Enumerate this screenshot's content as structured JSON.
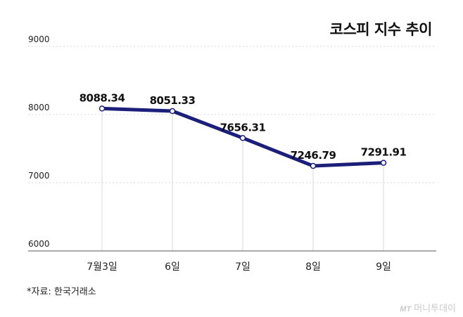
{
  "title": "코스피 지수 추이",
  "source": "*자료: 한국거래소",
  "brand": {
    "mark": "MT",
    "name": "머니투데이"
  },
  "colors": {
    "line": "#1c1f7a",
    "grid": "#d9d9d9",
    "marker_fill": "#ffffff"
  },
  "chart_data": {
    "type": "line",
    "title": "코스피 지수 추이",
    "xlabel": "",
    "ylabel": "",
    "categories": [
      "7월3일",
      "6일",
      "7일",
      "8일",
      "9일"
    ],
    "series": [
      {
        "values": [
          8088.34,
          8051.33,
          7656.31,
          7246.79,
          7291.91
        ]
      }
    ],
    "data_labels": [
      "8088.34",
      "8051.33",
      "7656.31",
      "7246.79",
      "7291.91"
    ],
    "yticks": [
      "9000",
      "8000",
      "7000",
      "6000"
    ],
    "ytick_values": [
      9000,
      8000,
      7000,
      6000
    ],
    "ylim": [
      6000,
      9000
    ],
    "grid": true,
    "legend": "none"
  }
}
